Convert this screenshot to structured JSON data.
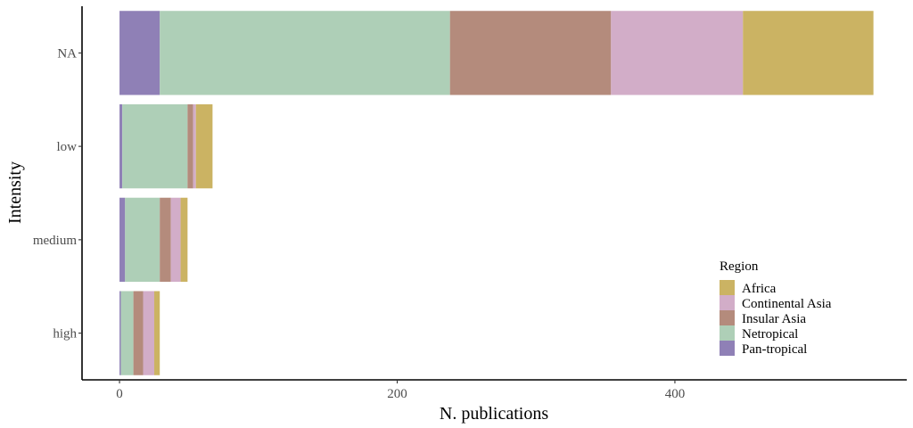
{
  "chart_data": {
    "type": "bar",
    "orientation": "horizontal",
    "stacked": true,
    "categories": [
      "NA",
      "low",
      "medium",
      "high"
    ],
    "series": [
      {
        "name": "Pan-tropical",
        "color": "#8f80b6",
        "values": [
          29,
          2,
          4,
          1
        ]
      },
      {
        "name": "Netropical",
        "color": "#aecfb7",
        "values": [
          209,
          47,
          25,
          9
        ]
      },
      {
        "name": "Insular Asia",
        "color": "#b48b7c",
        "values": [
          116,
          4,
          8,
          7
        ]
      },
      {
        "name": "Continental Asia",
        "color": "#d2adc8",
        "values": [
          95,
          2,
          7,
          8
        ]
      },
      {
        "name": "Africa",
        "color": "#cbb363",
        "values": [
          94,
          12,
          5,
          4
        ]
      }
    ],
    "xlabel": "N. publications",
    "ylabel": "Intensity",
    "xlim": [
      -27,
      567
    ],
    "xticks": [
      0,
      200,
      400
    ],
    "grid": false,
    "legend": {
      "title": "Region",
      "position": "bottom-right",
      "entries": [
        "Africa",
        "Continental Asia",
        "Insular Asia",
        "Netropical",
        "Pan-tropical"
      ]
    }
  }
}
